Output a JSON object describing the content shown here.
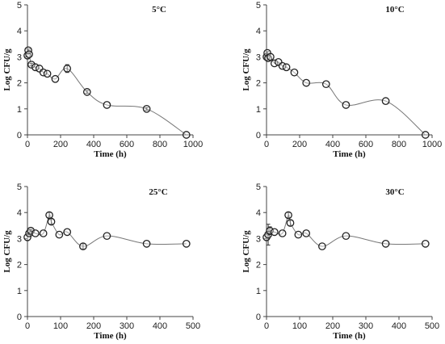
{
  "chart_data": [
    {
      "type": "scatter",
      "title": "5°C",
      "xlabel": "Time (h)",
      "ylabel": "Log CFU/g",
      "xlim": [
        0,
        1000
      ],
      "ylim": [
        0,
        5
      ],
      "xticks": [
        0,
        200,
        400,
        600,
        800,
        1000
      ],
      "yticks": [
        0,
        1,
        2,
        3,
        4,
        5
      ],
      "series": [
        {
          "x": [
            0,
            5,
            10,
            24,
            48,
            72,
            96,
            120,
            168,
            240,
            360,
            480,
            720,
            960
          ],
          "y": [
            3.05,
            3.25,
            3.1,
            2.7,
            2.6,
            2.55,
            2.4,
            2.35,
            2.15,
            2.55,
            1.65,
            1.15,
            1.0,
            0.0
          ],
          "error": [
            0,
            0.05,
            0,
            0.05,
            0,
            0,
            0,
            0,
            0,
            0.15,
            0.05,
            0,
            0.05,
            0
          ]
        }
      ]
    },
    {
      "type": "scatter",
      "title": "10°C",
      "xlabel": "Time (h)",
      "ylabel": "Log CFU/g",
      "xlim": [
        0,
        1000
      ],
      "ylim": [
        0,
        5
      ],
      "xticks": [
        0,
        200,
        400,
        600,
        800,
        1000
      ],
      "yticks": [
        0,
        1,
        2,
        3,
        4,
        5
      ],
      "series": [
        {
          "x": [
            0,
            5,
            10,
            24,
            48,
            72,
            96,
            120,
            168,
            240,
            360,
            480,
            720,
            960
          ],
          "y": [
            3.0,
            3.15,
            2.95,
            3.0,
            2.75,
            2.8,
            2.65,
            2.6,
            2.4,
            2.0,
            1.95,
            1.15,
            1.3,
            0.0
          ],
          "error": [
            0,
            0.05,
            0,
            0,
            0,
            0,
            0,
            0,
            0,
            0,
            0,
            0,
            0,
            0
          ]
        }
      ]
    },
    {
      "type": "scatter",
      "title": "25°C",
      "xlabel": "Time (h)",
      "ylabel": "Log CFU/g",
      "xlim": [
        0,
        500
      ],
      "ylim": [
        0,
        5
      ],
      "xticks": [
        0,
        100,
        200,
        300,
        400,
        500
      ],
      "yticks": [
        0,
        1,
        2,
        3,
        4,
        5
      ],
      "series": [
        {
          "x": [
            0,
            5,
            10,
            24,
            48,
            66,
            72,
            96,
            120,
            168,
            240,
            360,
            480
          ],
          "y": [
            3.05,
            3.2,
            3.3,
            3.2,
            3.2,
            3.9,
            3.65,
            3.15,
            3.25,
            2.7,
            3.1,
            2.8,
            2.8
          ],
          "error": [
            0,
            0.05,
            0.05,
            0,
            0,
            0.1,
            0.1,
            0,
            0,
            0.1,
            0,
            0,
            0
          ]
        }
      ]
    },
    {
      "type": "scatter",
      "title": "30°C",
      "xlabel": "Time (h)",
      "ylabel": "Log CFU/g",
      "xlim": [
        0,
        500
      ],
      "ylim": [
        0,
        5
      ],
      "xticks": [
        0,
        100,
        200,
        300,
        400,
        500
      ],
      "yticks": [
        0,
        1,
        2,
        3,
        4,
        5
      ],
      "series": [
        {
          "x": [
            0,
            5,
            10,
            24,
            48,
            66,
            72,
            96,
            120,
            168,
            240,
            360,
            480
          ],
          "y": [
            3.05,
            3.15,
            3.3,
            3.25,
            3.2,
            3.9,
            3.6,
            3.15,
            3.2,
            2.7,
            3.1,
            2.8,
            2.8
          ],
          "error": [
            0,
            0.4,
            0.15,
            0,
            0,
            0.1,
            0.1,
            0,
            0,
            0,
            0,
            0,
            0
          ]
        }
      ]
    }
  ]
}
